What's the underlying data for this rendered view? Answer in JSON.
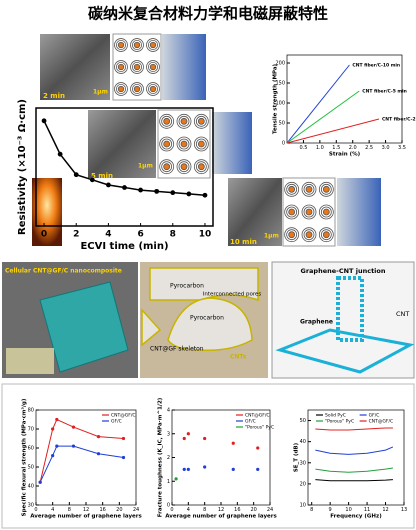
{
  "title": "碳纳米复合材料力学和电磁屏蔽特性",
  "insets": {
    "times": [
      "2 min",
      "5 min",
      "10 min"
    ],
    "scale_bar": "1μm"
  },
  "structure": {
    "left_title": "Cellular CNT@GF/C nanocomposite",
    "center_labels": [
      "Pyrocarbon",
      "Interconnected pores",
      "Pyrocarbon",
      "CNT@GF skeleton",
      "CNTs"
    ],
    "right_title": "Graphene-CNT junction",
    "right_labels": [
      "CNT",
      "Graphene"
    ]
  },
  "chart_data": [
    {
      "type": "line",
      "x_label": "ECVI time (min)",
      "y_label": "Resistivity (×10⁻³ Ω·cm)",
      "x": [
        0,
        1,
        2,
        3,
        4,
        5,
        6,
        7,
        8,
        9,
        10
      ],
      "values": [
        8.2,
        5.6,
        4.0,
        3.6,
        3.2,
        3.0,
        2.8,
        2.7,
        2.6,
        2.5,
        2.4
      ],
      "color": "#000000",
      "markers": true,
      "xlim": [
        -0.5,
        10.5
      ],
      "ylim": [
        0,
        9.2
      ],
      "xticks": [
        0,
        2,
        4,
        6,
        8,
        10
      ]
    },
    {
      "type": "line",
      "x_label": "Strain (%)",
      "y_label": "Tensile strength (MPa)",
      "series": [
        {
          "name": "CNT fiber/C-10 min",
          "color": "#1f3fd6",
          "x": [
            0,
            1.9
          ],
          "values": [
            0,
            195
          ]
        },
        {
          "name": "CNT fiber/C-5 min",
          "color": "#22c03a",
          "x": [
            0,
            2.2
          ],
          "values": [
            0,
            130
          ]
        },
        {
          "name": "CNT fiber/C-2 min",
          "color": "#e02020",
          "x": [
            0,
            2.8
          ],
          "values": [
            0,
            60
          ]
        }
      ],
      "xlim": [
        0,
        3.5
      ],
      "ylim": [
        0,
        220
      ],
      "xticks": [
        0.5,
        {
          "value": 1,
          "label": "1.0"
        },
        1.5,
        {
          "value": 2,
          "label": "2.0"
        },
        2.5,
        {
          "value": 3,
          "label": "3.0"
        },
        3.5
      ],
      "yticks": [
        0,
        50,
        100,
        150,
        200
      ],
      "series_labels_at_end": true
    },
    {
      "type": "line",
      "x_label": "Average number of graphene layers",
      "y_label": "Specific flexural strength (MPa·cm³/g)",
      "x": [
        1,
        4,
        5,
        9,
        15,
        21
      ],
      "series": [
        {
          "name": "CNT@GF/C",
          "color": "#e02020",
          "values": [
            42,
            70,
            75,
            71,
            66,
            65
          ]
        },
        {
          "name": "GF/C",
          "color": "#1f3fd6",
          "values": [
            42,
            56,
            61,
            61,
            57,
            55
          ]
        }
      ],
      "markers": true,
      "xlim": [
        0,
        24
      ],
      "ylim": [
        30,
        80
      ],
      "xticks": [
        0,
        4,
        8,
        12,
        16,
        20,
        24
      ],
      "yticks": [
        30,
        40,
        50,
        60,
        70,
        80
      ]
    },
    {
      "type": "scatter",
      "x_label": "Average number of graphene layers",
      "y_label": "Fracture toughness (K_IC, MPa·m^1/2)",
      "x": [
        1,
        3,
        4,
        8,
        15,
        21
      ],
      "series": [
        {
          "name": "CNT@GF/C",
          "color": "#e02020",
          "values": [
            null,
            2.8,
            3.0,
            2.8,
            2.6,
            2.4
          ]
        },
        {
          "name": "GF/C",
          "color": "#1f3fd6",
          "values": [
            null,
            1.5,
            1.5,
            1.6,
            1.5,
            1.5
          ]
        },
        {
          "name": "\"Porous\" PyC",
          "color": "#22a03a",
          "values": [
            1.1,
            null,
            null,
            null,
            null,
            null
          ]
        }
      ],
      "xlim": [
        0,
        24
      ],
      "ylim": [
        0,
        4
      ],
      "xticks": [
        0,
        4,
        8,
        12,
        16,
        20,
        24
      ],
      "yticks": [
        0,
        1,
        2,
        3,
        4
      ]
    },
    {
      "type": "line",
      "x_label": "Frequency (GHz)",
      "y_label": "SE_T (dB)",
      "x": [
        8.2,
        9,
        10,
        11,
        12,
        12.4
      ],
      "series": [
        {
          "name": "Solid PyC",
          "color": "#000000",
          "values": [
            22,
            21.5,
            21.5,
            21.5,
            21.8,
            22
          ]
        },
        {
          "name": "\"Porous\" PyC",
          "color": "#22a03a",
          "values": [
            27,
            26,
            25.5,
            26,
            27,
            27.5
          ]
        },
        {
          "name": "GF/C",
          "color": "#1f3fd6",
          "values": [
            36,
            34.5,
            34,
            34.5,
            36,
            37.5
          ]
        },
        {
          "name": "CNT@GF/C",
          "color": "#e02020",
          "values": [
            46,
            45.5,
            45.5,
            46,
            46.5,
            46.5
          ]
        }
      ],
      "xlim": [
        7.8,
        13
      ],
      "ylim": [
        10,
        55
      ],
      "xticks": [
        8,
        9,
        10,
        11,
        12,
        13
      ],
      "yticks": [
        10,
        20,
        30,
        40,
        50
      ]
    }
  ]
}
